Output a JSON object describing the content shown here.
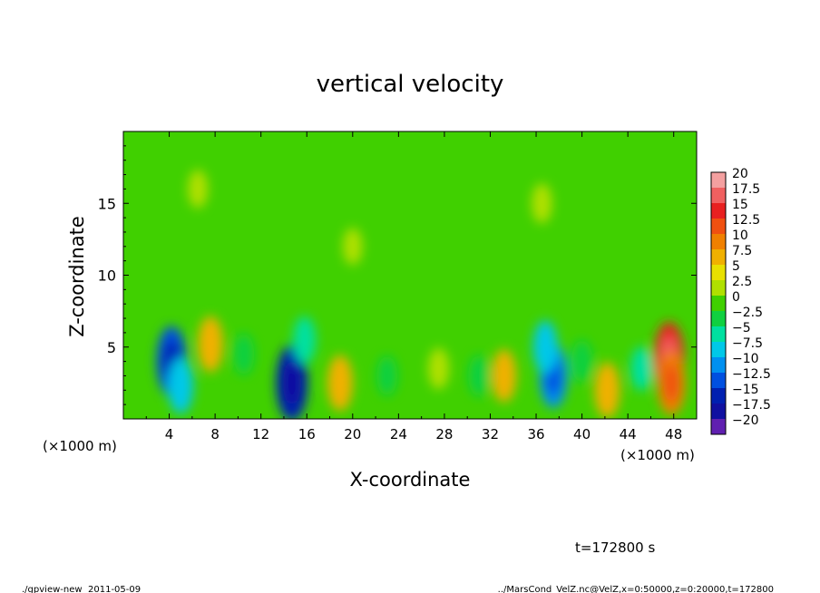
{
  "chart_data": {
    "type": "heatmap",
    "title": "vertical velocity",
    "xlabel": "X-coordinate",
    "ylabel": "Z-coordinate",
    "x_unit_left": "(×1000 m)",
    "x_unit_right": "(×1000 m)",
    "xlim": [
      0,
      50
    ],
    "ylim": [
      0,
      20
    ],
    "x_ticks": [
      4,
      8,
      12,
      16,
      20,
      24,
      28,
      32,
      36,
      40,
      44,
      48
    ],
    "x_tick_labels": [
      "4",
      "8",
      "12",
      "16",
      "20",
      "24",
      "28",
      "32",
      "36",
      "40",
      "44",
      "48"
    ],
    "y_ticks": [
      5,
      10,
      15
    ],
    "y_tick_labels": [
      "5",
      "10",
      "15"
    ],
    "background_value": 0,
    "features": [
      {
        "x": 4.2,
        "z": 4.0,
        "value": -13
      },
      {
        "x": 5.0,
        "z": 2.3,
        "value": -8
      },
      {
        "x": 7.6,
        "z": 5.2,
        "value": 8
      },
      {
        "x": 14.7,
        "z": 2.5,
        "value": -15
      },
      {
        "x": 15.8,
        "z": 5.5,
        "value": -5
      },
      {
        "x": 18.9,
        "z": 2.5,
        "value": 8
      },
      {
        "x": 33.2,
        "z": 3.0,
        "value": 7
      },
      {
        "x": 37.5,
        "z": 3.0,
        "value": -11
      },
      {
        "x": 36.8,
        "z": 5.0,
        "value": -7
      },
      {
        "x": 42.2,
        "z": 2.0,
        "value": 8
      },
      {
        "x": 47.6,
        "z": 4.2,
        "value": 14
      },
      {
        "x": 47.8,
        "z": 2.5,
        "value": 11
      },
      {
        "x": 10.5,
        "z": 4.5,
        "value": -3
      },
      {
        "x": 23.0,
        "z": 3.0,
        "value": -2.5
      },
      {
        "x": 27.5,
        "z": 3.5,
        "value": 3
      },
      {
        "x": 31.0,
        "z": 3.0,
        "value": -3
      },
      {
        "x": 40.0,
        "z": 4.0,
        "value": -3.5
      },
      {
        "x": 45.2,
        "z": 3.5,
        "value": -4
      },
      {
        "x": 36.5,
        "z": 15.0,
        "value": 2.5
      },
      {
        "x": 6.5,
        "z": 16.0,
        "value": 2
      },
      {
        "x": 20.0,
        "z": 12.0,
        "value": 1.5
      }
    ],
    "colorbar": {
      "labels": [
        "20",
        "17.5",
        "15",
        "12.5",
        "10",
        "7.5",
        "5",
        "2.5",
        "0",
        "−2.5",
        "−5",
        "−7.5",
        "−10",
        "−12.5",
        "−15",
        "−17.5",
        "−20"
      ],
      "colors": [
        "#f4a0a0",
        "#f06060",
        "#e82020",
        "#f05010",
        "#f08000",
        "#f0b000",
        "#e8e000",
        "#b0e000",
        "#40d000",
        "#10d040",
        "#00e0a0",
        "#00c8e8",
        "#0090f0",
        "#0050e0",
        "#0020b0",
        "#1010a0",
        "#6020b0"
      ]
    }
  },
  "footer": {
    "time_label": "t=172800 s",
    "command": "./gpview-new",
    "date": "2011-05-09",
    "source": "../MarsCond_VelZ.nc@VelZ,x=0:50000,z=0:20000,t=172800"
  }
}
